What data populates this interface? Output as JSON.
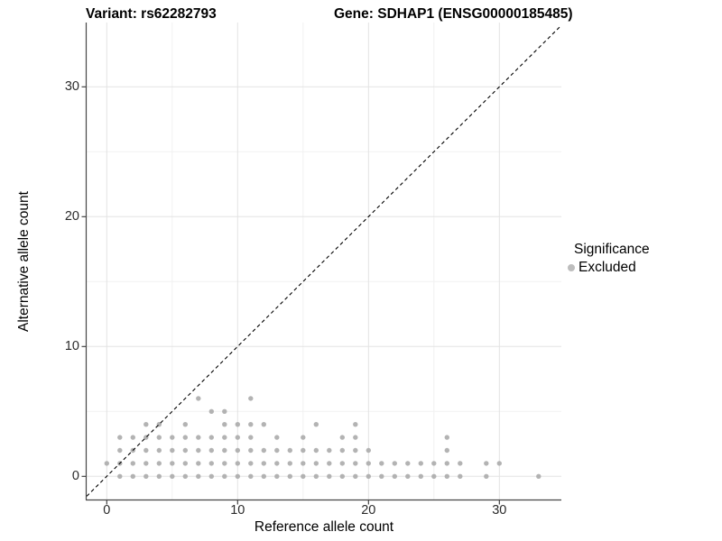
{
  "titles": {
    "variant": "Variant: rs62282793",
    "gene": "Gene: SDHAP1 (ENSG00000185485)"
  },
  "axes": {
    "x": {
      "label": "Reference allele count",
      "ticks": [
        0,
        10,
        20,
        30
      ]
    },
    "y": {
      "label": "Alternative allele count",
      "ticks": [
        0,
        10,
        20,
        30
      ]
    }
  },
  "legend": {
    "title": "Significance",
    "items": [
      {
        "label": "Excluded",
        "color": "#bdbdbd"
      }
    ]
  },
  "colors": {
    "point": "#ababab",
    "major_grid": "#e3e3e3",
    "minor_grid": "#f1f1f1",
    "axis_line": "#464646",
    "tick_mark": "#333333",
    "reference_line": "#000000"
  },
  "chart_data": {
    "type": "scatter",
    "title": "Variant: rs62282793 — Gene: SDHAP1 (ENSG00000185485)",
    "xlabel": "Reference allele count",
    "ylabel": "Alternative allele count",
    "xlim": [
      -1.6,
      34.7
    ],
    "ylim": [
      -1.8,
      35.0
    ],
    "grid": "on",
    "x_major_gridlines": [
      0,
      10,
      20,
      30
    ],
    "x_minor_gridlines": [
      5,
      15,
      25
    ],
    "y_major_gridlines": [
      0,
      10,
      20,
      30
    ],
    "y_minor_gridlines": [
      5,
      15,
      25
    ],
    "reference_line": {
      "equation": "y = x",
      "slope": 1,
      "intercept": 0,
      "style": "dashed",
      "color": "#000000"
    },
    "legend_position": "right",
    "series": [
      {
        "name": "Excluded",
        "color": "#ababab",
        "rows": [
          {
            "y": 0,
            "x": [
              1,
              2,
              3,
              4,
              5,
              6,
              7,
              8,
              9,
              10,
              11,
              12,
              13,
              14,
              15,
              16,
              17,
              18,
              19,
              20,
              21,
              22,
              23,
              24,
              25,
              26,
              27,
              29,
              33
            ]
          },
          {
            "y": 1,
            "x": [
              0,
              1,
              2,
              3,
              4,
              5,
              6,
              7,
              8,
              9,
              10,
              11,
              12,
              13,
              14,
              15,
              16,
              17,
              18,
              19,
              20,
              21,
              22,
              23,
              24,
              25,
              26,
              27,
              29,
              30
            ]
          },
          {
            "y": 2,
            "x": [
              1,
              2,
              3,
              4,
              5,
              6,
              7,
              8,
              9,
              10,
              11,
              12,
              13,
              14,
              15,
              16,
              17,
              18,
              19,
              20,
              26
            ]
          },
          {
            "y": 3,
            "x": [
              1,
              2,
              3,
              4,
              5,
              6,
              7,
              8,
              9,
              10,
              11,
              13,
              15,
              18,
              19,
              26
            ]
          },
          {
            "y": 4,
            "x": [
              3,
              4,
              6,
              9,
              10,
              11,
              12,
              16,
              19
            ]
          },
          {
            "y": 5,
            "x": [
              8,
              9
            ]
          },
          {
            "y": 6,
            "x": [
              7,
              11
            ]
          }
        ]
      }
    ]
  }
}
